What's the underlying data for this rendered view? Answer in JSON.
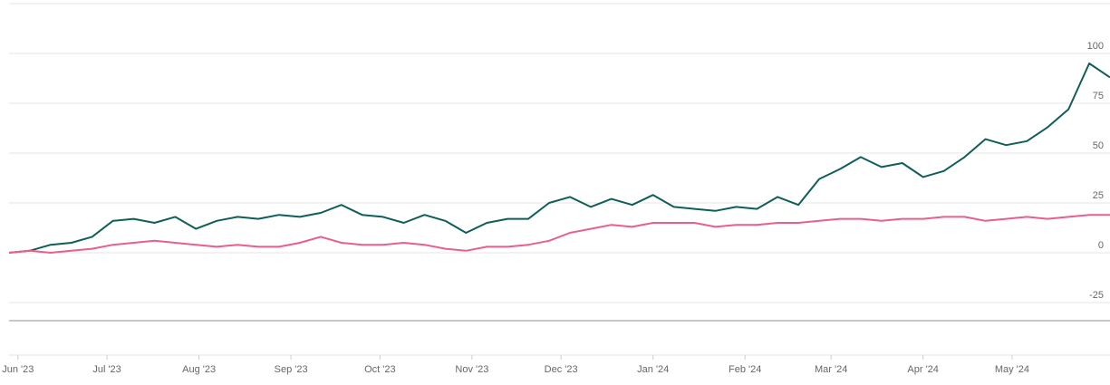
{
  "chart_data": {
    "type": "line",
    "title": "",
    "xlabel": "",
    "ylabel": "",
    "ylim": [
      -35,
      105
    ],
    "yticks": [
      100,
      75,
      50,
      25,
      0,
      -25
    ],
    "grid": true,
    "x_tick_labels": [
      "Jun '23",
      "Jul '23",
      "Aug '23",
      "Sep '23",
      "Oct '23",
      "Nov '23",
      "Dec '23",
      "Jan '24",
      "Feb '24",
      "Mar '24",
      "Apr '24",
      "May '24"
    ],
    "x": [
      "2023-05-29",
      "2023-06-05",
      "2023-06-12",
      "2023-06-19",
      "2023-06-26",
      "2023-07-03",
      "2023-07-10",
      "2023-07-17",
      "2023-07-24",
      "2023-07-31",
      "2023-08-07",
      "2023-08-14",
      "2023-08-21",
      "2023-08-28",
      "2023-09-04",
      "2023-09-11",
      "2023-09-18",
      "2023-09-25",
      "2023-10-02",
      "2023-10-09",
      "2023-10-16",
      "2023-10-23",
      "2023-10-30",
      "2023-11-06",
      "2023-11-13",
      "2023-11-20",
      "2023-11-27",
      "2023-12-04",
      "2023-12-11",
      "2023-12-18",
      "2023-12-25",
      "2024-01-01",
      "2024-01-08",
      "2024-01-15",
      "2024-01-22",
      "2024-01-29",
      "2024-02-05",
      "2024-02-12",
      "2024-02-19",
      "2024-02-26",
      "2024-03-04",
      "2024-03-11",
      "2024-03-18",
      "2024-03-25",
      "2024-04-01",
      "2024-04-08",
      "2024-04-15",
      "2024-04-22",
      "2024-04-29",
      "2024-05-06",
      "2024-05-13",
      "2024-05-20",
      "2024-05-27",
      "2024-06-03"
    ],
    "series": [
      {
        "color": "#0f5e58",
        "values": [
          0,
          1,
          4,
          5,
          8,
          16,
          17,
          15,
          18,
          12,
          16,
          18,
          17,
          19,
          18,
          20,
          24,
          19,
          18,
          15,
          19,
          16,
          10,
          15,
          17,
          17,
          25,
          28,
          23,
          27,
          24,
          29,
          23,
          22,
          21,
          23,
          22,
          28,
          24,
          37,
          42,
          48,
          43,
          45,
          38,
          41,
          48,
          57,
          54,
          56,
          63,
          72,
          95,
          88
        ]
      },
      {
        "color": "#e8608a",
        "values": [
          0,
          1,
          0,
          1,
          2,
          4,
          5,
          6,
          5,
          4,
          3,
          4,
          3,
          3,
          5,
          8,
          5,
          4,
          4,
          5,
          4,
          2,
          1,
          3,
          3,
          4,
          6,
          10,
          12,
          14,
          13,
          15,
          15,
          15,
          13,
          14,
          14,
          15,
          15,
          16,
          17,
          17,
          16,
          17,
          17,
          18,
          18,
          16,
          17,
          18,
          17,
          18,
          19,
          19
        ]
      }
    ]
  }
}
